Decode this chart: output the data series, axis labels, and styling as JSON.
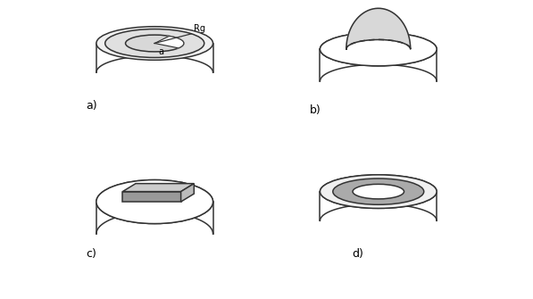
{
  "fig_width": 5.97,
  "fig_height": 3.35,
  "bg_color": "#ffffff",
  "label_a": "a)",
  "label_b": "b)",
  "label_c": "c)",
  "label_d": "d)",
  "text_Rg": "Rg",
  "text_a": "a",
  "ec": "#333333",
  "fc_white": "#ffffff",
  "fc_light_gray": "#d8d8d8",
  "fc_gray": "#aaaaaa",
  "fc_dark_gray": "#888888",
  "fc_top_face": "#cccccc",
  "fc_front_face": "#999999",
  "fc_side_face": "#bbbbbb"
}
